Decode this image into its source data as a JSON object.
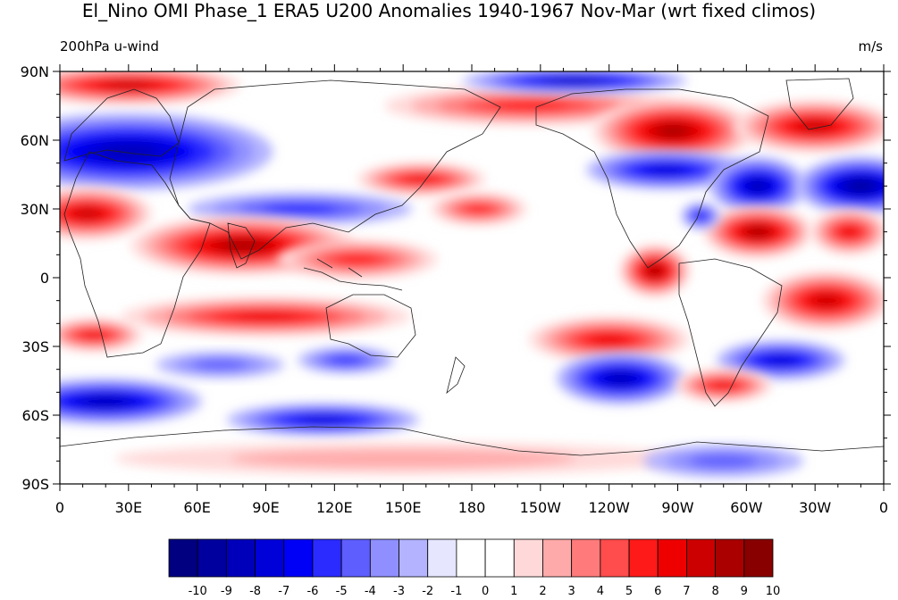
{
  "title": "El_Nino OMI Phase_1 ERA5 U200 Anomalies 1940-1967 Nov-Mar (wrt fixed climos)",
  "left_label": "200hPa u-wind",
  "right_label": "m/s",
  "map": {
    "lon_ticks": [
      "0",
      "30E",
      "60E",
      "90E",
      "120E",
      "150E",
      "180",
      "150W",
      "120W",
      "90W",
      "60W",
      "30W",
      "0"
    ],
    "lat_ticks": [
      "90N",
      "60N",
      "30N",
      "0",
      "30S",
      "60S",
      "90S"
    ],
    "features": [
      {
        "type": "pos",
        "lon": 30,
        "lat": 84,
        "rlon": 35,
        "rlat": 6,
        "level": 7
      },
      {
        "type": "pos",
        "lon": 205,
        "lat": 75,
        "rlon": 45,
        "rlat": 6,
        "level": 5
      },
      {
        "type": "neg",
        "lon": 225,
        "lat": 86,
        "rlon": 35,
        "rlat": 4,
        "level": 7
      },
      {
        "type": "pos",
        "lon": 268,
        "lat": 64,
        "rlon": 25,
        "rlat": 10,
        "level": 8
      },
      {
        "type": "pos",
        "lon": 330,
        "lat": 66,
        "rlon": 25,
        "rlat": 8,
        "level": 7
      },
      {
        "type": "neg",
        "lon": 30,
        "lat": 55,
        "rlon": 45,
        "rlat": 12,
        "level": 7
      },
      {
        "type": "neg",
        "lon": 265,
        "lat": 47,
        "rlon": 25,
        "rlat": 6,
        "level": 6
      },
      {
        "type": "neg",
        "lon": 305,
        "lat": 40,
        "rlon": 15,
        "rlat": 9,
        "level": 7
      },
      {
        "type": "neg",
        "lon": 350,
        "lat": 40,
        "rlon": 20,
        "rlat": 9,
        "level": 8
      },
      {
        "type": "pos",
        "lon": 12,
        "lat": 28,
        "rlon": 20,
        "rlat": 8,
        "level": 7
      },
      {
        "type": "pos",
        "lon": 158,
        "lat": 43,
        "rlon": 20,
        "rlat": 5,
        "level": 6
      },
      {
        "type": "neg",
        "lon": 105,
        "lat": 30,
        "rlon": 35,
        "rlat": 5,
        "level": 4
      },
      {
        "type": "pos",
        "lon": 183,
        "lat": 30,
        "rlon": 15,
        "rlat": 5,
        "level": 5
      },
      {
        "type": "pos",
        "lon": 305,
        "lat": 20,
        "rlon": 17,
        "rlat": 8,
        "level": 8
      },
      {
        "type": "neg",
        "lon": 280,
        "lat": 27,
        "rlon": 6,
        "rlat": 4,
        "level": 5
      },
      {
        "type": "pos",
        "lon": 345,
        "lat": 20,
        "rlon": 12,
        "rlat": 7,
        "level": 6
      },
      {
        "type": "pos",
        "lon": 80,
        "lat": 14,
        "rlon": 35,
        "rlat": 9,
        "level": 8
      },
      {
        "type": "pos",
        "lon": 130,
        "lat": 8,
        "rlon": 25,
        "rlat": 6,
        "level": 5
      },
      {
        "type": "pos",
        "lon": 260,
        "lat": 3,
        "rlon": 11,
        "rlat": 8,
        "level": 8
      },
      {
        "type": "pos",
        "lon": 335,
        "lat": -10,
        "rlon": 20,
        "rlat": 9,
        "level": 7
      },
      {
        "type": "pos",
        "lon": 90,
        "lat": -17,
        "rlon": 45,
        "rlat": 6,
        "level": 6
      },
      {
        "type": "pos",
        "lon": 15,
        "lat": -25,
        "rlon": 15,
        "rlat": 5,
        "level": 6
      },
      {
        "type": "pos",
        "lon": 240,
        "lat": -27,
        "rlon": 25,
        "rlat": 7,
        "level": 6
      },
      {
        "type": "neg",
        "lon": 315,
        "lat": -36,
        "rlon": 20,
        "rlat": 6,
        "level": 6
      },
      {
        "type": "neg",
        "lon": 125,
        "lat": -36,
        "rlon": 15,
        "rlat": 4,
        "level": 4
      },
      {
        "type": "neg",
        "lon": 245,
        "lat": -44,
        "rlon": 20,
        "rlat": 8,
        "level": 7
      },
      {
        "type": "pos",
        "lon": 290,
        "lat": -47,
        "rlon": 15,
        "rlat": 5,
        "level": 6
      },
      {
        "type": "neg",
        "lon": 20,
        "lat": -54,
        "rlon": 30,
        "rlat": 7,
        "level": 7
      },
      {
        "type": "neg",
        "lon": 115,
        "lat": -62,
        "rlon": 30,
        "rlat": 5,
        "level": 6
      },
      {
        "type": "neg",
        "lon": 70,
        "lat": -38,
        "rlon": 20,
        "rlat": 4,
        "level": 3
      },
      {
        "type": "pos",
        "lon": 150,
        "lat": -79,
        "rlon": 90,
        "rlat": 5,
        "level": 2
      },
      {
        "type": "neg",
        "lon": 290,
        "lat": -80,
        "rlon": 25,
        "rlat": 5,
        "level": 3
      }
    ]
  },
  "colorbar": {
    "labels": [
      "-10",
      "-9",
      "-8",
      "-7",
      "-6",
      "-5",
      "-4",
      "-3",
      "-2",
      "-1",
      "0",
      "1",
      "2",
      "3",
      "4",
      "5",
      "6",
      "7",
      "8",
      "9",
      "10"
    ],
    "colors": [
      "#000080",
      "#00009e",
      "#0000bb",
      "#0000d9",
      "#0000f7",
      "#2b2bff",
      "#5e5eff",
      "#8f8fff",
      "#b3b3ff",
      "#e6e6ff",
      "#ffffff",
      "#ffffff",
      "#ffd9d9",
      "#ffaaaa",
      "#ff7b7b",
      "#ff4c4c",
      "#ff1a1a",
      "#ee0000",
      "#cc0000",
      "#aa0000",
      "#880000"
    ]
  }
}
